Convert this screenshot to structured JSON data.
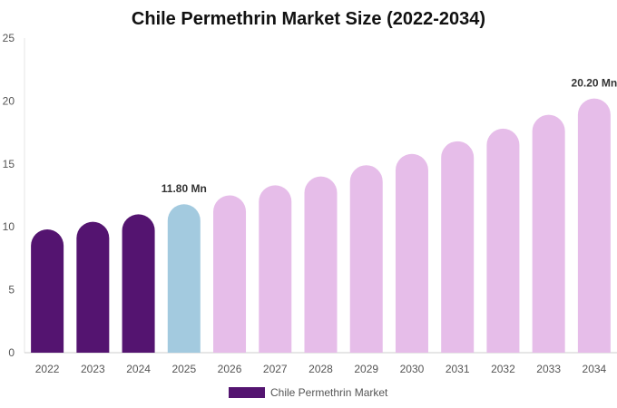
{
  "chart_data": {
    "type": "bar",
    "title": "Chile Permethrin Market Size (2022-2034)",
    "xlabel": "",
    "ylabel": "",
    "categories": [
      "2022",
      "2023",
      "2024",
      "2025",
      "2026",
      "2027",
      "2028",
      "2029",
      "2030",
      "2031",
      "2032",
      "2033",
      "2034"
    ],
    "series": [
      {
        "name": "Chile Permethrin Market",
        "values": [
          9.8,
          10.4,
          11.0,
          11.8,
          12.5,
          13.3,
          14.0,
          14.9,
          15.8,
          16.8,
          17.8,
          18.9,
          20.2
        ]
      }
    ],
    "ylim": [
      0,
      25
    ],
    "yticks": [
      0,
      5,
      10,
      15,
      20,
      25
    ],
    "data_labels": [
      {
        "category": "2025",
        "text": "11.80 Mn"
      },
      {
        "category": "2034",
        "text": "20.20 Mn"
      }
    ],
    "bar_colors": {
      "historical": "#541470",
      "base_year": "#a3cadf",
      "forecast": "#e6bde9"
    },
    "color_groups": [
      "historical",
      "historical",
      "historical",
      "base_year",
      "forecast",
      "forecast",
      "forecast",
      "forecast",
      "forecast",
      "forecast",
      "forecast",
      "forecast",
      "forecast"
    ],
    "grid": false,
    "legend": {
      "position": "bottom",
      "label": "Chile Permethrin Market",
      "color": "#541470"
    }
  }
}
